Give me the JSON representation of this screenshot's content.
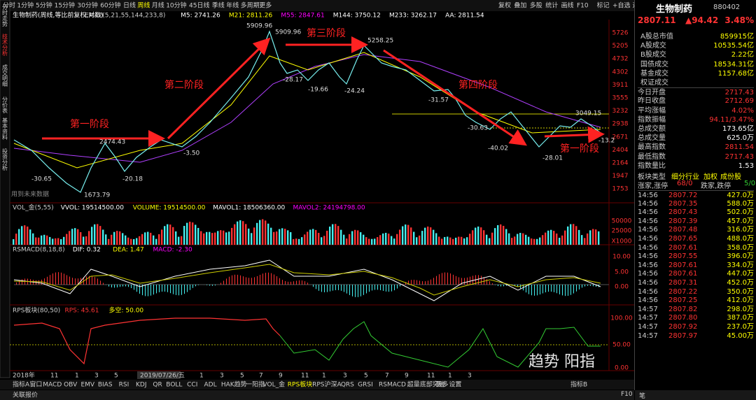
{
  "toolbar": {
    "periods": [
      "分时",
      "1分钟",
      "5分钟",
      "15分钟",
      "30分钟",
      "60分钟",
      "日线",
      "周线",
      "月线",
      "10分钟",
      "45日线",
      "季线",
      "年线",
      "多周期",
      "更多"
    ],
    "tools": [
      "复权",
      "叠加",
      "多股",
      "统计",
      "画线",
      "F10",
      "标记",
      "+自选",
      "返回"
    ]
  },
  "side_tabs": [
    "分时走势",
    "技术分析",
    "成交明细",
    "分价表",
    "基本资料",
    "投资分析"
  ],
  "main": {
    "header": [
      "生物制药(周线,等比前复权,对数)",
      "EMA2(5,21,55,144,233,8)",
      "M5: 2741.26",
      "M21: 2811.26",
      "M55: 2847.61",
      "M144: 3750.12",
      "M233: 3262.17",
      "AA: 2811.54"
    ],
    "price_axis": [
      "5726",
      "5205",
      "4732",
      "4302",
      "3911",
      "3555",
      "3232",
      "2938",
      "2671",
      "2404",
      "2164",
      "1947",
      "1753"
    ],
    "stages": [
      "第一阶段",
      "第二阶段",
      "第三阶段",
      "第四阶段",
      "第一阶段"
    ],
    "price_labels": [
      "5909.96",
      "5909.96",
      "5258.25",
      "2474.43",
      "1673.79",
      "-30.65",
      "-20.18",
      "-3.50",
      "-28.17",
      "-19.66",
      "-24.24",
      "-31.57",
      "-30.63",
      "-40.02",
      "-28.01",
      "3049.15",
      "-13.2"
    ],
    "note": "用到未来数据"
  },
  "vol": {
    "header": [
      "VOL_金(5,55)",
      "VVOL: 19514500.00",
      "VOLUME: 19514500.00",
      "MAVOL1: 18506360.00",
      "MAVOL2: 24194798.00"
    ],
    "axis": [
      "50000",
      "25000",
      "X1000"
    ]
  },
  "macd": {
    "header": [
      "RSMACD(8,18,8)",
      "DIF: 0.32",
      "DEA: 1.47",
      "MACD: -2.30"
    ],
    "axis": [
      "10.00",
      "5.00",
      "0.00"
    ]
  },
  "rps": {
    "header": [
      "RPS板块(80,50)",
      "RPS: 45.61",
      "多空: 50.00"
    ],
    "axis": [
      "100.00",
      "50.00",
      "0.00"
    ]
  },
  "x_axis": [
    "2018年",
    "11",
    "1",
    "3",
    "5",
    "2019/07/26/五",
    "1",
    "3",
    "5",
    "7",
    "9",
    "11",
    "1",
    "3",
    "5",
    "7",
    "9",
    "11",
    "1",
    "3"
  ],
  "bottom_tabs": [
    "指标A",
    "窗口",
    "MACD",
    "OBV",
    "EMV",
    "BIAS",
    "RSI",
    "KDJ",
    "QR",
    "BOLL",
    "CCI",
    "ADL",
    "HAK趋势",
    "一阳指",
    "VOL_金",
    "RPS板块",
    "RPS沪深A",
    "QRS",
    "GRSI",
    "RSMACD",
    "超量底部突破",
    "更多",
    "设置"
  ],
  "bottom_right": "指标B",
  "status": {
    "left": "关联报价",
    "right": [
      "F10",
      "笔"
    ]
  },
  "quote": {
    "name": "生物制药",
    "code": "880402",
    "price": "2807.11",
    "change": "▲94.42",
    "pct": "3.48%",
    "rows": [
      [
        "A股总市值",
        "859915亿"
      ],
      [
        "A股成交",
        "10535.54亿"
      ],
      [
        "B股成交",
        "2.22亿"
      ],
      [
        "国债成交",
        "18534.31亿"
      ],
      [
        "基金成交",
        "1157.68亿"
      ],
      [
        "权证成交",
        ""
      ],
      [
        "今日开盘",
        "2717.43"
      ],
      [
        "昨日收盘",
        "2712.69"
      ],
      [
        "平均涨幅",
        "4.02%"
      ],
      [
        "指数振幅",
        "94.11/3.47%"
      ],
      [
        "总成交额",
        "173.65亿"
      ],
      [
        "总成交量",
        "625.0万"
      ],
      [
        "最高指数",
        "2811.54"
      ],
      [
        "最低指数",
        "2717.43"
      ],
      [
        "指数量比",
        "1.53"
      ]
    ],
    "sector": [
      "板块类型",
      "细分行业",
      "加权",
      "成份股"
    ],
    "breadth": [
      "涨家,涨停",
      "68/0",
      "跌家,跌停",
      "5/0"
    ],
    "ticks": [
      [
        "14:56",
        "2807.72",
        "427.0万"
      ],
      [
        "14:56",
        "2807.35",
        "588.0万"
      ],
      [
        "14:56",
        "2807.43",
        "502.0万"
      ],
      [
        "14:56",
        "2807.39",
        "457.0万"
      ],
      [
        "14:56",
        "2807.48",
        "316.0万"
      ],
      [
        "14:56",
        "2807.65",
        "488.0万"
      ],
      [
        "14:56",
        "2807.61",
        "358.0万"
      ],
      [
        "14:56",
        "2807.55",
        "396.0万"
      ],
      [
        "14:56",
        "2807.61",
        "334.0万"
      ],
      [
        "14:56",
        "2807.61",
        "447.0万"
      ],
      [
        "14:56",
        "2807.31",
        "452.0万"
      ],
      [
        "14:56",
        "2807.22",
        "350.0万"
      ],
      [
        "14:56",
        "2807.25",
        "412.0万"
      ],
      [
        "14:57",
        "2807.82",
        "298.0万"
      ],
      [
        "14:57",
        "2807.80",
        "387.0万"
      ],
      [
        "14:57",
        "2807.92",
        "237.0万"
      ],
      [
        "14:57",
        "2807.97",
        "45.00万"
      ]
    ]
  },
  "watermark": "趋势   阳指"
}
